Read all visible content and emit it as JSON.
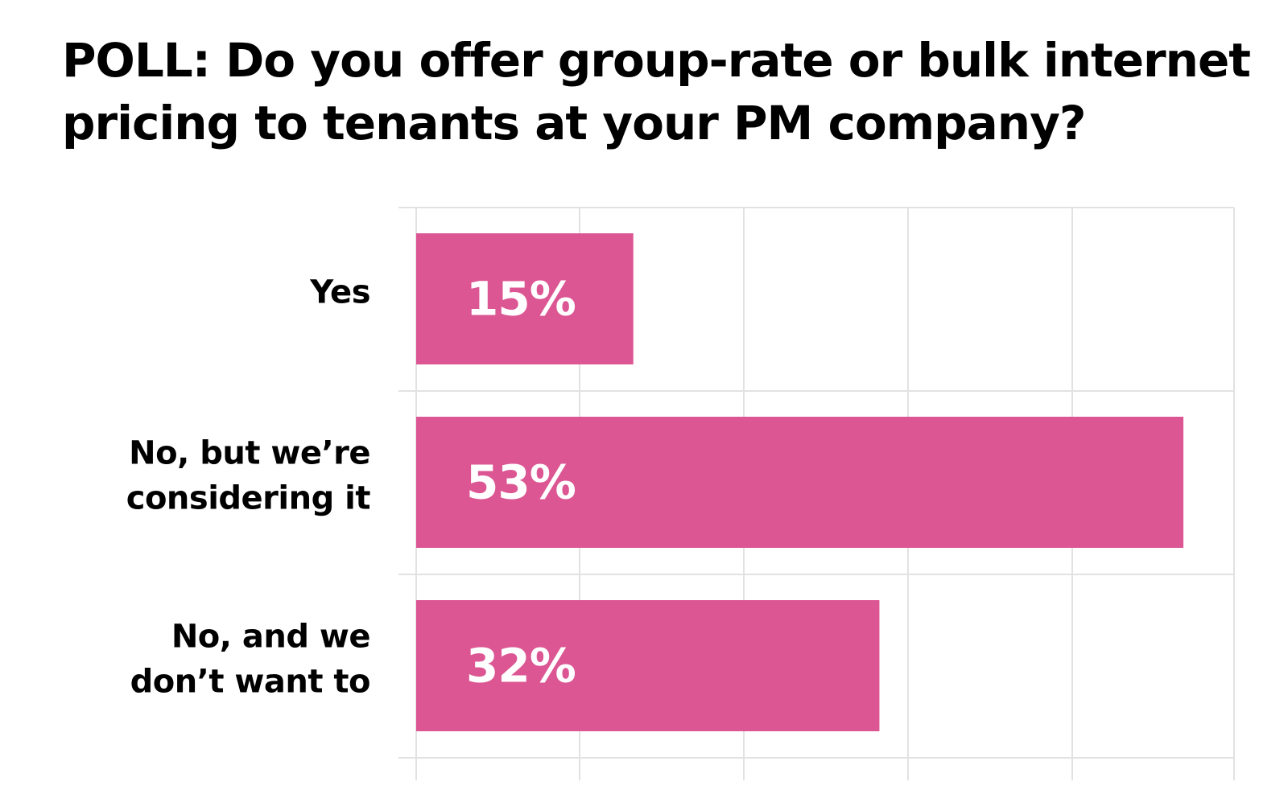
{
  "title": "POLL: Do you offer group-rate or bulk internet pricing to tenants at your PM company?",
  "colors": {
    "bar": "#DC5693",
    "bar_text": "#FFFFFF",
    "label_text": "#000000",
    "grid": "#E2E2E2"
  },
  "chart_data": {
    "type": "bar",
    "orientation": "horizontal",
    "title": "POLL: Do you offer group-rate or bulk internet pricing to tenants at your PM company?",
    "categories": [
      [
        "Yes"
      ],
      [
        "No, but we’re",
        "considering it"
      ],
      [
        "No, and we",
        "don’t want to"
      ]
    ],
    "values": [
      15,
      53,
      32
    ],
    "value_labels": [
      "15%",
      "53%",
      "32%"
    ],
    "unit": "%",
    "xlim": [
      0,
      56.5
    ],
    "grid": true,
    "xlabel": "",
    "ylabel": ""
  }
}
